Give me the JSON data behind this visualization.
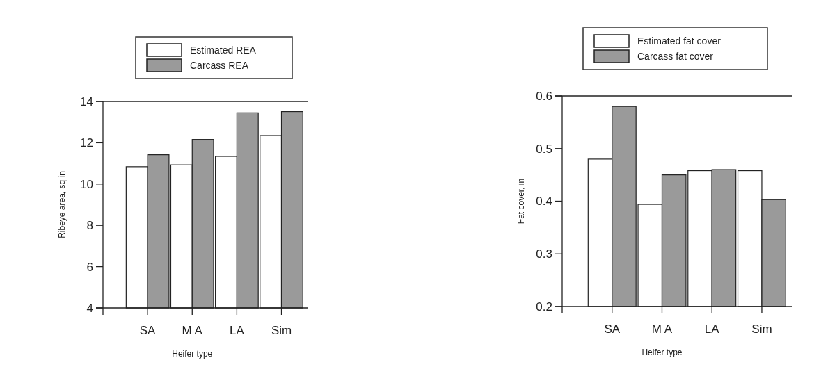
{
  "chart_data": [
    {
      "type": "bar",
      "xlabel": "Heifer type",
      "ylabel": "Ribeye area, sq in",
      "categories": [
        "SA",
        "M A",
        "LA",
        "Sim"
      ],
      "series": [
        {
          "name": "Estimated REA",
          "color": "#ffffff",
          "values": [
            10.84,
            10.93,
            11.34,
            12.35
          ]
        },
        {
          "name": "Carcass REA",
          "color": "#9a9a9a",
          "values": [
            11.42,
            12.16,
            13.45,
            13.51
          ]
        }
      ],
      "ylim": [
        4,
        14
      ],
      "yticks": [
        4,
        6,
        8,
        10,
        12,
        14
      ],
      "legend": "top",
      "grid": false
    },
    {
      "type": "bar",
      "xlabel": "Heifer type",
      "ylabel": "Fat cover, in",
      "categories": [
        "SA",
        "M A",
        "LA",
        "Sim"
      ],
      "series": [
        {
          "name": "Estimated fat cover",
          "color": "#ffffff",
          "values": [
            0.48,
            0.394,
            0.458,
            0.458
          ]
        },
        {
          "name": "Carcass fat cover",
          "color": "#9a9a9a",
          "values": [
            0.58,
            0.45,
            0.46,
            0.403
          ]
        }
      ],
      "ylim": [
        0.2,
        0.6
      ],
      "yticks": [
        0.2,
        0.3,
        0.4,
        0.5,
        0.6
      ],
      "legend": "top",
      "grid": false
    }
  ]
}
